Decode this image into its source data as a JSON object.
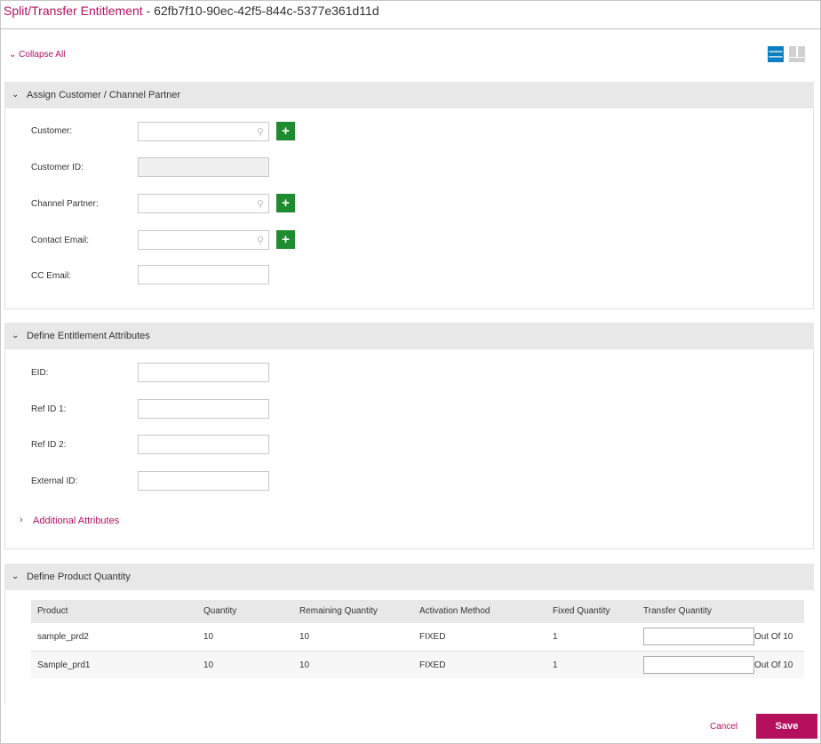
{
  "header": {
    "title": "Split/Transfer Entitlement",
    "separator": " - ",
    "id": "62fb7f10-90ec-42f5-844c-5377e361d11d"
  },
  "collapse_all": "Collapse All",
  "view_icons": {
    "list": "list-view-icon",
    "grid": "grid-view-icon",
    "active_color": "#0a7fc2"
  },
  "sections": [
    {
      "title": "Assign Customer / Channel Partner",
      "fields": [
        {
          "label": "Customer:",
          "value": "",
          "search": true,
          "add": true
        },
        {
          "label": "Customer ID:",
          "value": "",
          "readonly": true
        },
        {
          "label": "Channel Partner:",
          "value": "",
          "search": true,
          "add": true
        },
        {
          "label": "Contact Email:",
          "value": "",
          "search": true,
          "add": true
        },
        {
          "label": "CC Email:",
          "value": ""
        }
      ]
    },
    {
      "title": "Define Entitlement Attributes",
      "fields": [
        {
          "label": "EID:",
          "value": ""
        },
        {
          "label": "Ref ID 1:",
          "value": ""
        },
        {
          "label": "Ref ID 2:",
          "value": ""
        },
        {
          "label": "External ID:",
          "value": ""
        }
      ],
      "additional": "Additional Attributes"
    },
    {
      "title": "Define Product Quantity",
      "table": {
        "columns": [
          "Product",
          "Quantity",
          "Remaining Quantity",
          "Activation Method",
          "Fixed Quantity",
          "Transfer Quantity"
        ],
        "rows": [
          {
            "product": "sample_prd2",
            "quantity": "10",
            "remaining": "10",
            "method": "FIXED",
            "fixed": "1",
            "transfer": "",
            "out_of": "Out Of 10"
          },
          {
            "product": "Sample_prd1",
            "quantity": "10",
            "remaining": "10",
            "method": "FIXED",
            "fixed": "1",
            "transfer": "",
            "out_of": "Out Of 10"
          }
        ]
      }
    }
  ],
  "footer": {
    "cancel": "Cancel",
    "save": "Save"
  },
  "colors": {
    "brand": "#b5105e",
    "add": "#1e8b2e"
  }
}
